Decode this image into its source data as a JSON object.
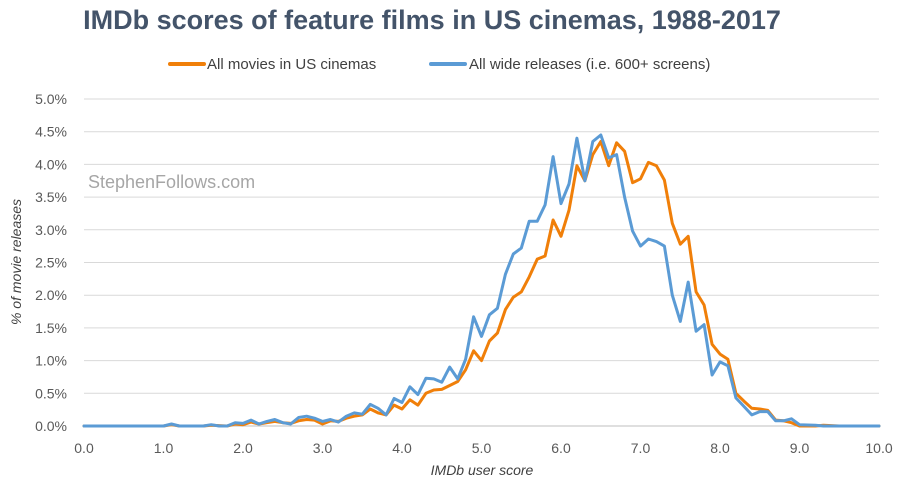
{
  "chart_data": {
    "type": "line",
    "title": "IMDb scores of feature films in US cinemas, 1988-2017",
    "xlabel": "IMDb user score",
    "ylabel": "% of movie releases",
    "xlim": [
      0,
      10
    ],
    "ylim": [
      0,
      5
    ],
    "x_ticks": [
      "0.0",
      "1.0",
      "2.0",
      "3.0",
      "4.0",
      "5.0",
      "6.0",
      "7.0",
      "8.0",
      "9.0",
      "10.0"
    ],
    "y_ticks": [
      "0.0%",
      "0.5%",
      "1.0%",
      "1.5%",
      "2.0%",
      "2.5%",
      "3.0%",
      "3.5%",
      "4.0%",
      "4.5%",
      "5.0%"
    ],
    "grid": true,
    "legend_position": "top-center",
    "watermark": "StephenFollows.com",
    "series": [
      {
        "name": "All movies in US cinemas",
        "color": "#f07f09",
        "points": [
          [
            0.0,
            0.0
          ],
          [
            0.5,
            0.0
          ],
          [
            1.0,
            0.0
          ],
          [
            1.1,
            0.02
          ],
          [
            1.2,
            0.0
          ],
          [
            1.5,
            0.0
          ],
          [
            1.6,
            0.01
          ],
          [
            1.8,
            0.0
          ],
          [
            1.9,
            0.03
          ],
          [
            2.0,
            0.02
          ],
          [
            2.1,
            0.06
          ],
          [
            2.2,
            0.03
          ],
          [
            2.3,
            0.05
          ],
          [
            2.4,
            0.07
          ],
          [
            2.5,
            0.05
          ],
          [
            2.6,
            0.04
          ],
          [
            2.7,
            0.08
          ],
          [
            2.8,
            0.1
          ],
          [
            2.9,
            0.09
          ],
          [
            3.0,
            0.03
          ],
          [
            3.1,
            0.08
          ],
          [
            3.2,
            0.07
          ],
          [
            3.3,
            0.12
          ],
          [
            3.4,
            0.15
          ],
          [
            3.5,
            0.17
          ],
          [
            3.6,
            0.26
          ],
          [
            3.7,
            0.2
          ],
          [
            3.8,
            0.17
          ],
          [
            3.9,
            0.32
          ],
          [
            4.0,
            0.26
          ],
          [
            4.1,
            0.4
          ],
          [
            4.2,
            0.32
          ],
          [
            4.3,
            0.5
          ],
          [
            4.4,
            0.55
          ],
          [
            4.5,
            0.56
          ],
          [
            4.6,
            0.62
          ],
          [
            4.7,
            0.68
          ],
          [
            4.8,
            0.86
          ],
          [
            4.9,
            1.15
          ],
          [
            5.0,
            1.0
          ],
          [
            5.1,
            1.3
          ],
          [
            5.2,
            1.42
          ],
          [
            5.3,
            1.78
          ],
          [
            5.4,
            1.97
          ],
          [
            5.5,
            2.05
          ],
          [
            5.6,
            2.28
          ],
          [
            5.7,
            2.55
          ],
          [
            5.8,
            2.6
          ],
          [
            5.9,
            3.15
          ],
          [
            6.0,
            2.9
          ],
          [
            6.1,
            3.3
          ],
          [
            6.2,
            3.98
          ],
          [
            6.3,
            3.75
          ],
          [
            6.4,
            4.15
          ],
          [
            6.5,
            4.35
          ],
          [
            6.6,
            3.98
          ],
          [
            6.7,
            4.33
          ],
          [
            6.8,
            4.2
          ],
          [
            6.9,
            3.72
          ],
          [
            7.0,
            3.78
          ],
          [
            7.1,
            4.03
          ],
          [
            7.2,
            3.98
          ],
          [
            7.3,
            3.76
          ],
          [
            7.4,
            3.1
          ],
          [
            7.5,
            2.78
          ],
          [
            7.6,
            2.9
          ],
          [
            7.7,
            2.05
          ],
          [
            7.8,
            1.85
          ],
          [
            7.9,
            1.25
          ],
          [
            8.0,
            1.1
          ],
          [
            8.1,
            1.02
          ],
          [
            8.2,
            0.5
          ],
          [
            8.3,
            0.38
          ],
          [
            8.4,
            0.27
          ],
          [
            8.5,
            0.26
          ],
          [
            8.6,
            0.24
          ],
          [
            8.7,
            0.09
          ],
          [
            8.8,
            0.08
          ],
          [
            8.9,
            0.05
          ],
          [
            9.0,
            0.0
          ],
          [
            9.2,
            0.0
          ],
          [
            9.3,
            0.01
          ],
          [
            9.5,
            0.0
          ],
          [
            10.0,
            0.0
          ]
        ]
      },
      {
        "name": "All wide releases (i.e. 600+ screens)",
        "color": "#5b9bd5",
        "points": [
          [
            0.0,
            0.0
          ],
          [
            0.5,
            0.0
          ],
          [
            1.0,
            0.0
          ],
          [
            1.1,
            0.03
          ],
          [
            1.2,
            0.0
          ],
          [
            1.5,
            0.0
          ],
          [
            1.6,
            0.02
          ],
          [
            1.7,
            0.0
          ],
          [
            1.8,
            0.0
          ],
          [
            1.9,
            0.05
          ],
          [
            2.0,
            0.04
          ],
          [
            2.1,
            0.09
          ],
          [
            2.2,
            0.03
          ],
          [
            2.3,
            0.07
          ],
          [
            2.4,
            0.1
          ],
          [
            2.5,
            0.05
          ],
          [
            2.6,
            0.03
          ],
          [
            2.7,
            0.13
          ],
          [
            2.8,
            0.15
          ],
          [
            2.9,
            0.12
          ],
          [
            3.0,
            0.07
          ],
          [
            3.1,
            0.1
          ],
          [
            3.2,
            0.06
          ],
          [
            3.3,
            0.15
          ],
          [
            3.4,
            0.2
          ],
          [
            3.5,
            0.18
          ],
          [
            3.6,
            0.33
          ],
          [
            3.7,
            0.27
          ],
          [
            3.8,
            0.17
          ],
          [
            3.9,
            0.42
          ],
          [
            4.0,
            0.36
          ],
          [
            4.1,
            0.6
          ],
          [
            4.2,
            0.48
          ],
          [
            4.3,
            0.73
          ],
          [
            4.4,
            0.72
          ],
          [
            4.5,
            0.67
          ],
          [
            4.6,
            0.9
          ],
          [
            4.7,
            0.72
          ],
          [
            4.8,
            1.02
          ],
          [
            4.9,
            1.67
          ],
          [
            5.0,
            1.37
          ],
          [
            5.1,
            1.7
          ],
          [
            5.2,
            1.8
          ],
          [
            5.3,
            2.32
          ],
          [
            5.4,
            2.63
          ],
          [
            5.5,
            2.72
          ],
          [
            5.6,
            3.13
          ],
          [
            5.7,
            3.13
          ],
          [
            5.8,
            3.38
          ],
          [
            5.9,
            4.12
          ],
          [
            6.0,
            3.4
          ],
          [
            6.1,
            3.7
          ],
          [
            6.2,
            4.4
          ],
          [
            6.3,
            3.75
          ],
          [
            6.4,
            4.35
          ],
          [
            6.5,
            4.45
          ],
          [
            6.6,
            4.1
          ],
          [
            6.7,
            4.15
          ],
          [
            6.8,
            3.5
          ],
          [
            6.9,
            2.98
          ],
          [
            7.0,
            2.75
          ],
          [
            7.1,
            2.86
          ],
          [
            7.2,
            2.82
          ],
          [
            7.3,
            2.75
          ],
          [
            7.4,
            2.0
          ],
          [
            7.5,
            1.6
          ],
          [
            7.6,
            2.2
          ],
          [
            7.7,
            1.45
          ],
          [
            7.8,
            1.55
          ],
          [
            7.9,
            0.78
          ],
          [
            8.0,
            0.98
          ],
          [
            8.1,
            0.92
          ],
          [
            8.2,
            0.43
          ],
          [
            8.3,
            0.3
          ],
          [
            8.4,
            0.17
          ],
          [
            8.5,
            0.22
          ],
          [
            8.6,
            0.22
          ],
          [
            8.7,
            0.08
          ],
          [
            8.8,
            0.08
          ],
          [
            8.9,
            0.11
          ],
          [
            9.0,
            0.02
          ],
          [
            9.2,
            0.01
          ],
          [
            9.3,
            0.0
          ],
          [
            10.0,
            0.0
          ]
        ]
      }
    ]
  }
}
